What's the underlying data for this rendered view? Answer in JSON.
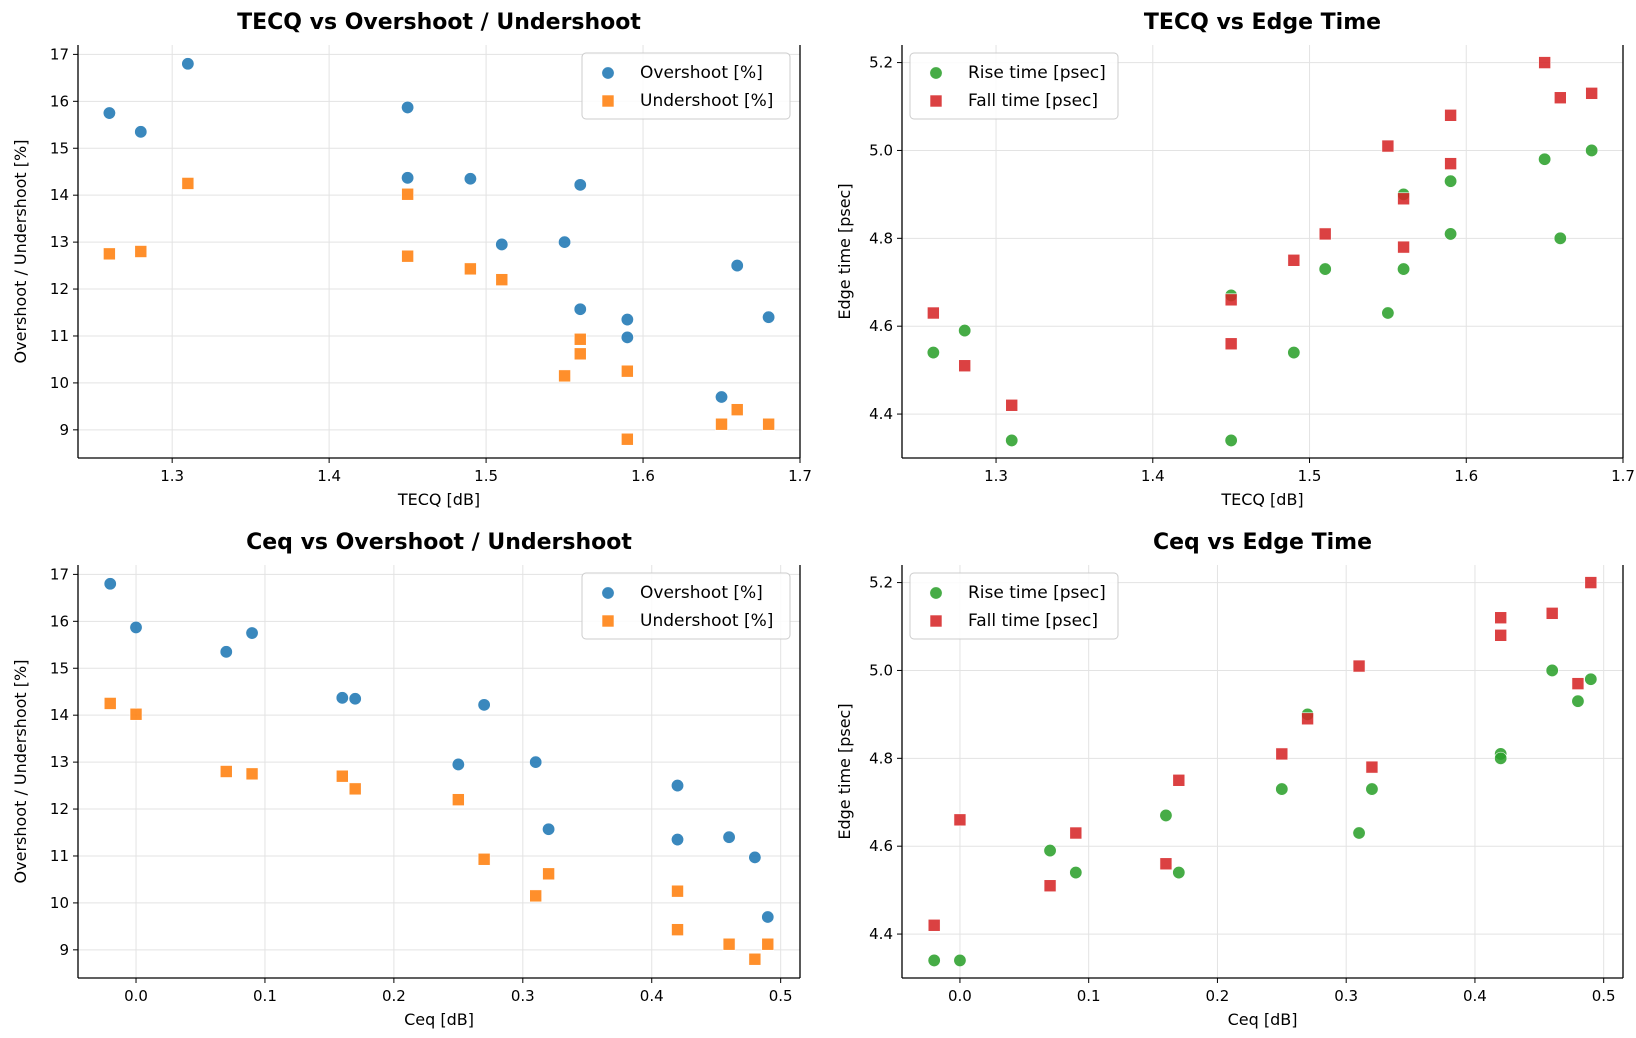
{
  "chart_data": [
    {
      "type": "scatter",
      "title": "TECQ vs Overshoot / Undershoot",
      "xlabel": "TECQ [dB]",
      "ylabel": "Overshoot / Undershoot [%]",
      "xlim": [
        1.24,
        1.7
      ],
      "ylim": [
        8.4,
        17.2
      ],
      "xticks": [
        1.3,
        1.4,
        1.5,
        1.6,
        1.7
      ],
      "yticks": [
        9,
        10,
        11,
        12,
        13,
        14,
        15,
        16,
        17
      ],
      "grid": true,
      "legend": "top-right",
      "series": [
        {
          "name": "Overshoot [%]",
          "marker": "circle",
          "color": "#1f77b4",
          "x": [
            1.26,
            1.28,
            1.31,
            1.45,
            1.45,
            1.49,
            1.51,
            1.55,
            1.56,
            1.56,
            1.59,
            1.59,
            1.65,
            1.66,
            1.68
          ],
          "y": [
            15.75,
            15.35,
            16.8,
            15.87,
            14.37,
            14.35,
            12.95,
            13.0,
            14.22,
            11.57,
            11.35,
            10.97,
            9.7,
            12.5,
            11.4
          ]
        },
        {
          "name": "Undershoot [%]",
          "marker": "square",
          "color": "#ff7f0e",
          "x": [
            1.26,
            1.28,
            1.31,
            1.45,
            1.45,
            1.49,
            1.51,
            1.55,
            1.56,
            1.56,
            1.59,
            1.59,
            1.65,
            1.66,
            1.68
          ],
          "y": [
            12.75,
            12.8,
            14.25,
            14.02,
            12.7,
            12.43,
            12.2,
            10.15,
            10.93,
            10.62,
            10.25,
            8.8,
            9.12,
            9.43,
            9.12
          ]
        }
      ]
    },
    {
      "type": "scatter",
      "title": "TECQ vs Edge Time",
      "xlabel": "TECQ [dB]",
      "ylabel": "Edge time [psec]",
      "xlim": [
        1.24,
        1.7
      ],
      "ylim": [
        4.3,
        5.24
      ],
      "xticks": [
        1.3,
        1.4,
        1.5,
        1.6,
        1.7
      ],
      "yticks": [
        4.4,
        4.6,
        4.8,
        5.0,
        5.2
      ],
      "ytick_labels": [
        "4.4",
        "4.6",
        "4.8",
        "5.0",
        "5.2"
      ],
      "grid": true,
      "legend": "top-left",
      "series": [
        {
          "name": "Rise time [psec]",
          "marker": "circle",
          "color": "#2ca02c",
          "x": [
            1.26,
            1.28,
            1.31,
            1.45,
            1.45,
            1.49,
            1.51,
            1.55,
            1.56,
            1.56,
            1.59,
            1.59,
            1.65,
            1.66,
            1.68
          ],
          "y": [
            4.54,
            4.59,
            4.34,
            4.67,
            4.34,
            4.54,
            4.73,
            4.63,
            4.9,
            4.73,
            4.93,
            4.81,
            4.98,
            4.8,
            5.0
          ]
        },
        {
          "name": "Fall time [psec]",
          "marker": "square",
          "color": "#d62728",
          "x": [
            1.26,
            1.28,
            1.31,
            1.45,
            1.45,
            1.49,
            1.51,
            1.55,
            1.56,
            1.56,
            1.59,
            1.59,
            1.65,
            1.66,
            1.68
          ],
          "y": [
            4.63,
            4.51,
            4.42,
            4.66,
            4.56,
            4.75,
            4.81,
            5.01,
            4.89,
            4.78,
            5.08,
            4.97,
            5.2,
            5.12,
            5.13
          ]
        }
      ]
    },
    {
      "type": "scatter",
      "title": "Ceq vs Overshoot / Undershoot",
      "xlabel": "Ceq [dB]",
      "ylabel": "Overshoot / Undershoot [%]",
      "xlim": [
        -0.045,
        0.515
      ],
      "ylim": [
        8.4,
        17.2
      ],
      "xticks": [
        0.0,
        0.1,
        0.2,
        0.3,
        0.4,
        0.5
      ],
      "xtick_labels": [
        "0.0",
        "0.1",
        "0.2",
        "0.3",
        "0.4",
        "0.5"
      ],
      "yticks": [
        9,
        10,
        11,
        12,
        13,
        14,
        15,
        16,
        17
      ],
      "grid": true,
      "legend": "top-right",
      "series": [
        {
          "name": "Overshoot [%]",
          "marker": "circle",
          "color": "#1f77b4",
          "x": [
            -0.02,
            0.0,
            0.07,
            0.09,
            0.16,
            0.17,
            0.25,
            0.27,
            0.31,
            0.32,
            0.42,
            0.42,
            0.46,
            0.48,
            0.49
          ],
          "y": [
            16.8,
            15.87,
            15.35,
            15.75,
            14.37,
            14.35,
            12.95,
            14.22,
            13.0,
            11.57,
            12.5,
            11.35,
            11.4,
            10.97,
            9.7
          ]
        },
        {
          "name": "Undershoot [%]",
          "marker": "square",
          "color": "#ff7f0e",
          "x": [
            -0.02,
            0.0,
            0.07,
            0.09,
            0.16,
            0.17,
            0.25,
            0.27,
            0.31,
            0.32,
            0.42,
            0.42,
            0.46,
            0.48,
            0.49
          ],
          "y": [
            14.25,
            14.02,
            12.8,
            12.75,
            12.7,
            12.43,
            12.2,
            10.93,
            10.15,
            10.62,
            10.25,
            9.43,
            9.12,
            8.8,
            9.12
          ]
        }
      ]
    },
    {
      "type": "scatter",
      "title": "Ceq vs Edge Time",
      "xlabel": "Ceq [dB]",
      "ylabel": "Edge time [psec]",
      "xlim": [
        -0.045,
        0.515
      ],
      "ylim": [
        4.3,
        5.24
      ],
      "xticks": [
        0.0,
        0.1,
        0.2,
        0.3,
        0.4,
        0.5
      ],
      "xtick_labels": [
        "0.0",
        "0.1",
        "0.2",
        "0.3",
        "0.4",
        "0.5"
      ],
      "yticks": [
        4.4,
        4.6,
        4.8,
        5.0,
        5.2
      ],
      "ytick_labels": [
        "4.4",
        "4.6",
        "4.8",
        "5.0",
        "5.2"
      ],
      "grid": true,
      "legend": "top-left",
      "series": [
        {
          "name": "Rise time [psec]",
          "marker": "circle",
          "color": "#2ca02c",
          "x": [
            -0.02,
            0.0,
            0.07,
            0.09,
            0.16,
            0.17,
            0.25,
            0.27,
            0.31,
            0.32,
            0.42,
            0.42,
            0.46,
            0.48,
            0.49
          ],
          "y": [
            4.34,
            4.34,
            4.59,
            4.54,
            4.67,
            4.54,
            4.73,
            4.9,
            4.63,
            4.73,
            4.81,
            4.8,
            5.0,
            4.93,
            4.98
          ]
        },
        {
          "name": "Fall time [psec]",
          "marker": "square",
          "color": "#d62728",
          "x": [
            -0.02,
            0.0,
            0.07,
            0.09,
            0.16,
            0.17,
            0.25,
            0.27,
            0.31,
            0.32,
            0.42,
            0.42,
            0.46,
            0.48,
            0.49
          ],
          "y": [
            4.42,
            4.66,
            4.51,
            4.63,
            4.56,
            4.75,
            4.81,
            4.89,
            5.01,
            4.78,
            5.12,
            5.08,
            5.13,
            4.97,
            5.2
          ]
        }
      ]
    }
  ]
}
